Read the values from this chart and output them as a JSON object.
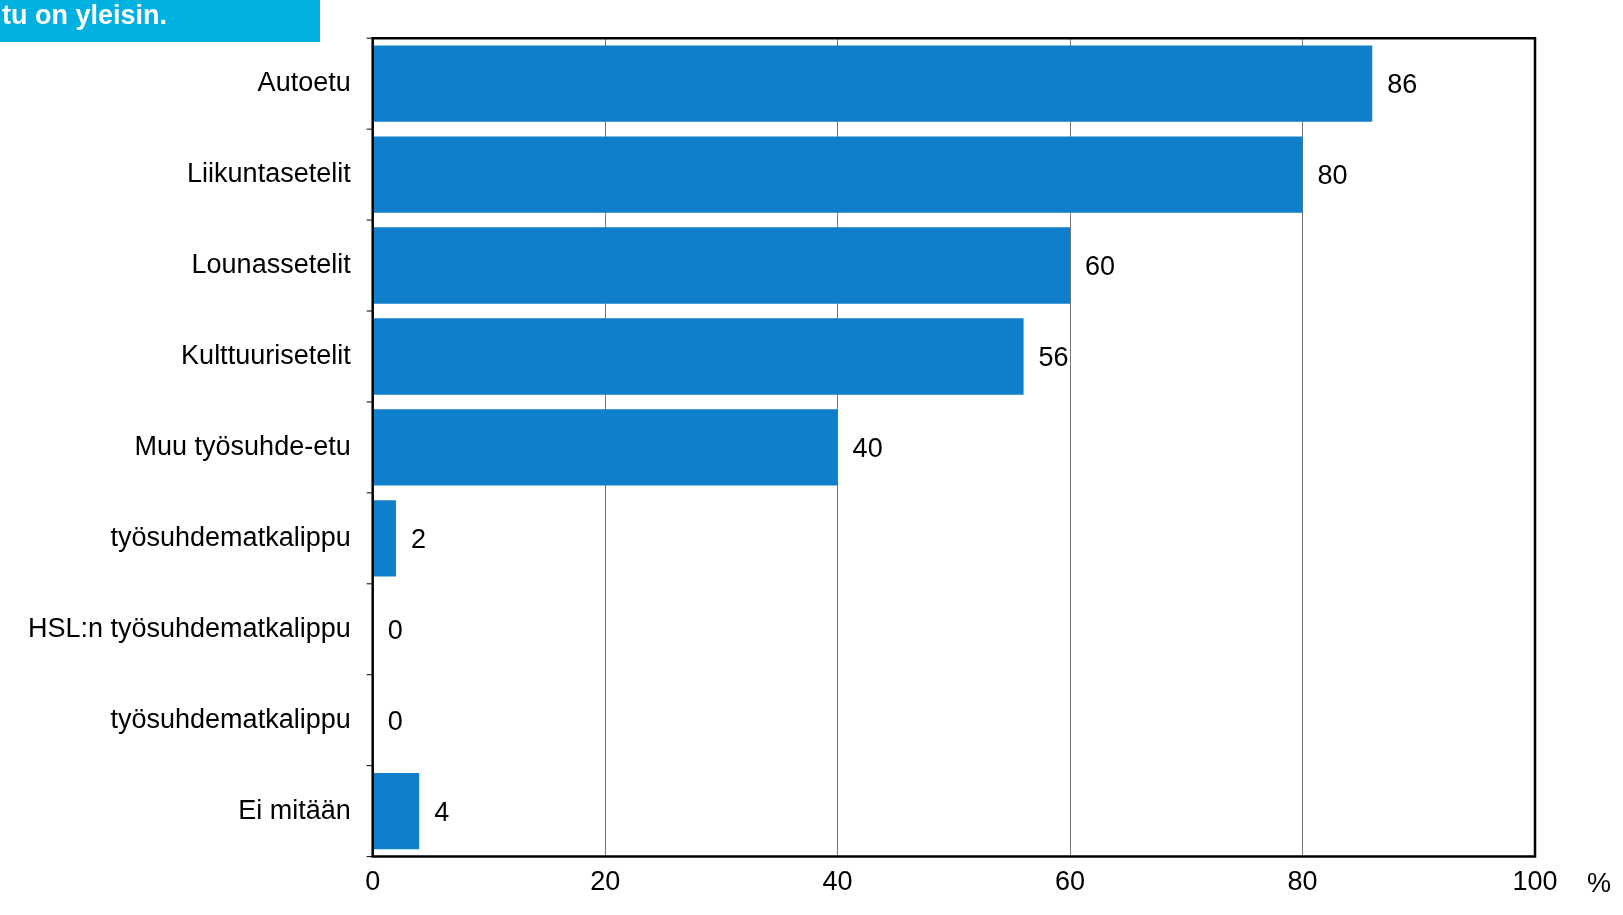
{
  "chart_data": {
    "type": "bar",
    "orientation": "horizontal",
    "title": "tu on yleisin.",
    "xlabel": "%",
    "categories": [
      "Autoetu",
      "Liikuntasetelit",
      "Lounassetelit",
      "Kulttuurisetelit",
      "Muu työsuhde-etu",
      "työsuhdematkalippu",
      "HSL:n työsuhdematkalippu",
      "työsuhdematkalippu",
      "Ei mitään"
    ],
    "values": [
      86,
      80,
      60,
      56,
      40,
      2,
      0,
      0,
      4
    ],
    "color": "#0f7fcc",
    "xlim": [
      0,
      100
    ],
    "xticks": [
      0,
      20,
      40,
      60,
      80,
      100
    ],
    "grid": "x",
    "legend": false,
    "data_labels": true
  }
}
